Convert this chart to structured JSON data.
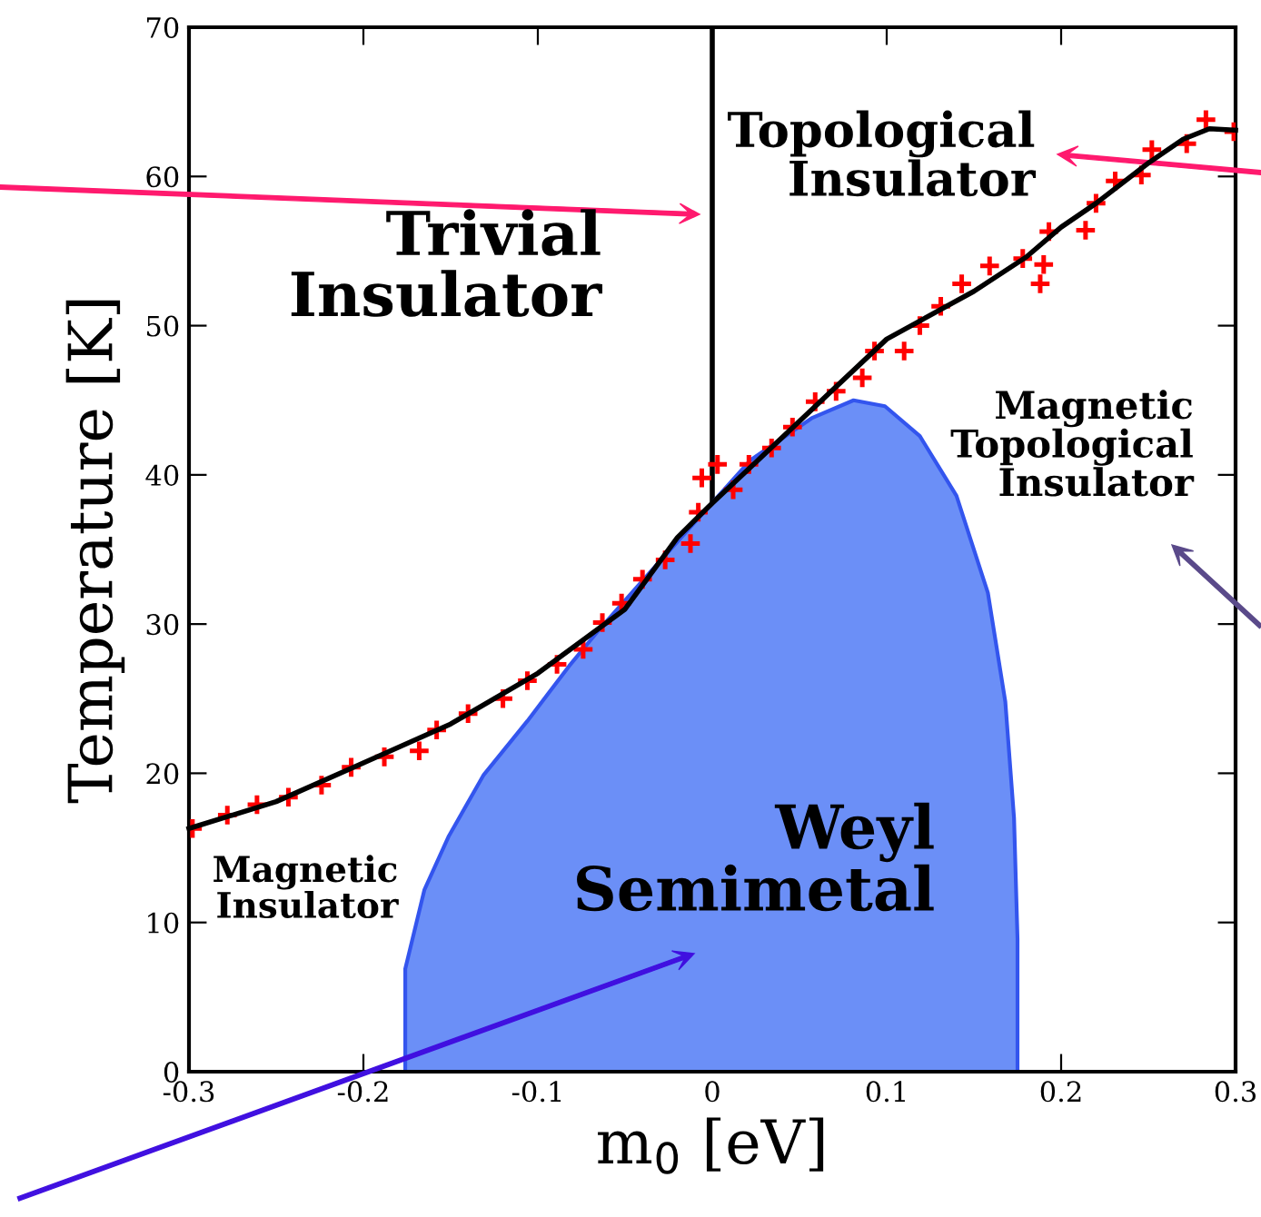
{
  "chart_data": {
    "type": "line",
    "xlabel": "m$_{0}$ [eV]",
    "ylabel": "Temperature [K]",
    "xlim": [
      -0.3,
      0.3
    ],
    "ylim": [
      0,
      70
    ],
    "xticks": [
      -0.3,
      -0.2,
      -0.1,
      0,
      0.1,
      0.2,
      0.3
    ],
    "yticks": [
      0,
      10,
      20,
      30,
      40,
      50,
      60,
      70
    ],
    "grid": false,
    "legend": false,
    "series": [
      {
        "type": "area",
        "color": "#6b8ff7",
        "x": [
          -0.176,
          -0.176,
          -0.165,
          -0.151,
          -0.131,
          -0.106,
          -0.082,
          -0.065,
          -0.04,
          -0.0125,
          0.022,
          0.057,
          0.081,
          0.099,
          0.119,
          0.14,
          0.158,
          0.168,
          0.173,
          0.175,
          0.175
        ],
        "values": [
          0,
          6.9,
          12.2,
          15.8,
          19.9,
          23.5,
          27.2,
          29.6,
          32.9,
          36.5,
          41.0,
          43.8,
          45.0,
          44.6,
          42.6,
          38.6,
          32.1,
          24.8,
          17.0,
          8.9,
          0
        ]
      },
      {
        "color": "#000000",
        "x": [
          -0.3,
          -0.25,
          -0.2,
          -0.15,
          -0.1,
          -0.05,
          -0.02,
          0,
          0.05,
          0.1,
          0.15,
          0.18,
          0.2,
          0.22,
          0.25,
          0.27,
          0.285,
          0.3
        ],
        "values": [
          16.3,
          18.1,
          20.7,
          23.3,
          26.7,
          31.0,
          35.8,
          38.1,
          43.6,
          49.1,
          52.3,
          54.6,
          56.6,
          58.2,
          60.9,
          62.5,
          63.2,
          63.1
        ]
      },
      {
        "type": "scatter",
        "color": "#ff0000",
        "marker": "cross",
        "x": [
          -0.298,
          -0.278,
          -0.261,
          -0.243,
          -0.224,
          -0.207,
          -0.188,
          -0.168,
          -0.158,
          -0.14,
          -0.12,
          -0.106,
          -0.089,
          -0.074,
          -0.063,
          -0.052,
          -0.04,
          -0.027,
          -0.0125,
          -0.008,
          -0.006,
          0.003,
          0.012,
          0.021,
          0.034,
          0.046,
          0.059,
          0.071,
          0.086,
          0.093,
          0.11,
          0.119,
          0.131,
          0.143,
          0.159,
          0.178,
          0.19,
          0.188,
          0.193,
          0.214,
          0.22,
          0.231,
          0.246,
          0.252,
          0.272,
          0.283,
          0.299
        ],
        "values": [
          16.3,
          17.2,
          17.9,
          18.4,
          19.2,
          20.4,
          21.1,
          21.5,
          22.9,
          24.0,
          25.0,
          26.2,
          27.3,
          28.3,
          30.1,
          31.4,
          33.0,
          34.3,
          35.4,
          37.5,
          39.8,
          40.7,
          39.0,
          40.7,
          41.8,
          43.2,
          44.9,
          45.6,
          46.5,
          48.3,
          48.3,
          50.0,
          51.3,
          52.8,
          54.0,
          54.5,
          54.1,
          52.8,
          56.3,
          56.4,
          58.2,
          59.7,
          60.1,
          61.8,
          62.2,
          63.8,
          63.0
        ]
      }
    ],
    "ref_lines": [
      {
        "axis": "x",
        "value": 0,
        "color": "#000000"
      }
    ],
    "annotations": [
      "Trivial\nInsulator",
      "Topological\nInsulator",
      "Magnetic\nTopological\nInsulator",
      "Magnetic\nInsulator",
      "Weyl\nSemimetal"
    ]
  }
}
